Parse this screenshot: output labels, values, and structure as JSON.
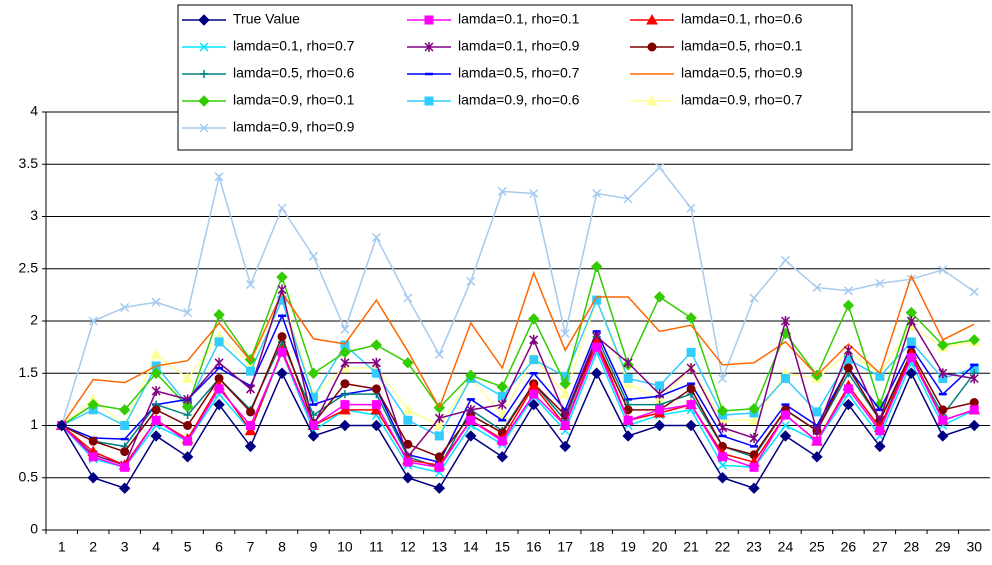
{
  "chart_data": {
    "type": "line",
    "categories": [
      1,
      2,
      3,
      4,
      5,
      6,
      7,
      8,
      9,
      10,
      11,
      12,
      13,
      14,
      15,
      16,
      17,
      18,
      19,
      20,
      21,
      22,
      23,
      24,
      25,
      26,
      27,
      28,
      29,
      30
    ],
    "ylim": [
      0,
      4
    ],
    "yticks": [
      0,
      0.5,
      1,
      1.5,
      2,
      2.5,
      3,
      3.5,
      4
    ],
    "grid": true,
    "series": [
      {
        "name": "True Value",
        "color": "#000080",
        "marker": "diamond",
        "values": [
          1,
          0.5,
          0.4,
          0.9,
          0.7,
          1.2,
          0.8,
          1.5,
          0.9,
          1,
          1,
          0.5,
          0.4,
          0.9,
          0.7,
          1.2,
          0.8,
          1.5,
          0.9,
          1,
          1,
          0.5,
          0.4,
          0.9,
          0.7,
          1.2,
          0.8,
          1.5,
          0.9,
          1
        ]
      },
      {
        "name": "lamda=0.1, rho=0.1",
        "color": "#ff00ff",
        "marker": "square",
        "values": [
          1,
          0.7,
          0.6,
          1.05,
          0.85,
          1.35,
          1,
          1.7,
          1,
          1.2,
          1.2,
          0.65,
          0.6,
          1.05,
          0.85,
          1.3,
          1,
          1.75,
          1.05,
          1.15,
          1.2,
          0.7,
          0.6,
          1.1,
          0.85,
          1.35,
          0.95,
          1.65,
          1.05,
          1.15
        ]
      },
      {
        "name": "lamda=0.1, rho=0.6",
        "color": "#ff0000",
        "marker": "triangle",
        "values": [
          1,
          0.75,
          0.62,
          1.05,
          0.87,
          1.38,
          0.95,
          1.72,
          1,
          1.15,
          1.15,
          0.67,
          0.62,
          1.05,
          0.87,
          1.38,
          1,
          1.8,
          1.05,
          1.12,
          1.2,
          0.73,
          0.65,
          1.1,
          0.85,
          1.38,
          0.98,
          1.68,
          1.05,
          1.15
        ]
      },
      {
        "name": "lamda=0.1, rho=0.7",
        "color": "#00e5ff",
        "marker": "x",
        "values": [
          1,
          0.68,
          0.6,
          1,
          0.85,
          1.3,
          0.95,
          1.7,
          0.95,
          1.15,
          1.1,
          0.62,
          0.55,
          1,
          0.82,
          1.28,
          0.95,
          1.7,
          1,
          1.1,
          1.15,
          0.62,
          0.6,
          1,
          0.85,
          1.3,
          0.9,
          1.6,
          1,
          1.15
        ]
      },
      {
        "name": "lamda=0.1, rho=0.9",
        "color": "#800080",
        "marker": "star",
        "values": [
          1,
          0.72,
          0.62,
          1.33,
          1.25,
          1.6,
          1.35,
          2.3,
          1,
          1.6,
          1.6,
          0.7,
          1.07,
          1.15,
          1.2,
          1.82,
          1.1,
          1.85,
          1.6,
          1.3,
          1.55,
          0.98,
          0.88,
          2,
          0.95,
          1.72,
          1.05,
          2,
          1.5,
          1.45
        ]
      },
      {
        "name": "lamda=0.5, rho=0.1",
        "color": "#800000",
        "marker": "circle",
        "values": [
          1,
          0.85,
          0.75,
          1.15,
          1,
          1.45,
          1.13,
          1.85,
          1.02,
          1.4,
          1.35,
          0.82,
          0.7,
          1.1,
          0.93,
          1.4,
          1.1,
          1.8,
          1.15,
          1.15,
          1.35,
          0.8,
          0.72,
          1.15,
          0.95,
          1.55,
          1.05,
          1.7,
          1.15,
          1.22
        ]
      },
      {
        "name": "lamda=0.5, rho=0.6",
        "color": "#008080",
        "marker": "plus",
        "values": [
          1,
          0.85,
          0.8,
          1.2,
          1.1,
          1.45,
          1.15,
          1.8,
          1.1,
          1.3,
          1.3,
          0.7,
          0.6,
          1.15,
          0.95,
          1.4,
          1.05,
          1.85,
          1.2,
          1.2,
          1.3,
          0.8,
          0.7,
          1.15,
          0.95,
          1.5,
          1.05,
          1.65,
          1.1,
          1.5
        ]
      },
      {
        "name": "lamda=0.5, rho=0.7",
        "color": "#0000ff",
        "marker": "dash",
        "values": [
          1,
          0.88,
          0.87,
          1.2,
          1.25,
          1.55,
          1.38,
          2.05,
          1.2,
          1.3,
          1.35,
          0.72,
          0.65,
          1.25,
          1.05,
          1.5,
          1.15,
          1.9,
          1.25,
          1.28,
          1.4,
          0.9,
          0.8,
          1.2,
          1,
          1.55,
          1.15,
          1.75,
          1.3,
          1.58
        ]
      },
      {
        "name": "lamda=0.5, rho=0.9",
        "color": "#ff6600",
        "marker": "none",
        "values": [
          1,
          1.44,
          1.41,
          1.57,
          1.62,
          1.98,
          1.62,
          2.27,
          1.83,
          1.78,
          2.2,
          1.71,
          1.17,
          1.98,
          1.55,
          2.46,
          1.72,
          2.23,
          2.23,
          1.9,
          1.96,
          1.58,
          1.6,
          1.8,
          1.48,
          1.78,
          1.5,
          2.43,
          1.82,
          1.97
        ]
      },
      {
        "name": "lamda=0.9, rho=0.1",
        "color": "#33cc00",
        "marker": "diamond",
        "values": [
          1,
          1.2,
          1.15,
          1.5,
          1.18,
          2.06,
          1.63,
          2.42,
          1.5,
          1.7,
          1.77,
          1.6,
          1.17,
          1.48,
          1.37,
          2.02,
          1.4,
          2.52,
          1.58,
          2.23,
          2.03,
          1.14,
          1.16,
          1.88,
          1.48,
          2.15,
          1.2,
          2.08,
          1.77,
          1.82
        ]
      },
      {
        "name": "lamda=0.9, rho=0.6",
        "color": "#33ccff",
        "marker": "square",
        "values": [
          1,
          1.15,
          1,
          1.57,
          1.2,
          1.8,
          1.52,
          2.2,
          1.27,
          1.77,
          1.5,
          1.05,
          0.9,
          1.45,
          1.28,
          1.63,
          1.47,
          2.2,
          1.45,
          1.38,
          1.7,
          1.1,
          1.12,
          1.45,
          1.13,
          1.63,
          1.47,
          1.8,
          1.45,
          1.55
        ]
      },
      {
        "name": "lamda=0.9, rho=0.7",
        "color": "#ffff99",
        "marker": "triangle",
        "values": [
          1,
          1.25,
          1,
          1.68,
          1.45,
          1.85,
          1.6,
          2.25,
          1.3,
          1.55,
          1.55,
          1.15,
          1,
          1.45,
          1.1,
          1.65,
          1.3,
          2.2,
          1.4,
          1.25,
          1.55,
          1.05,
          1.05,
          1.5,
          1.45,
          1.7,
          1.5,
          1.95,
          1.75,
          1.8
        ]
      },
      {
        "name": "lamda=0.9, rho=0.9",
        "color": "#a6caf0",
        "marker": "x",
        "values": [
          1,
          2,
          2.13,
          2.18,
          2.08,
          3.38,
          2.35,
          3.08,
          2.62,
          1.92,
          2.8,
          2.22,
          1.68,
          2.38,
          3.24,
          3.22,
          1.88,
          3.22,
          3.17,
          3.47,
          3.08,
          1.45,
          2.22,
          2.58,
          2.32,
          2.29,
          2.36,
          2.4,
          2.49,
          2.28
        ]
      }
    ]
  }
}
